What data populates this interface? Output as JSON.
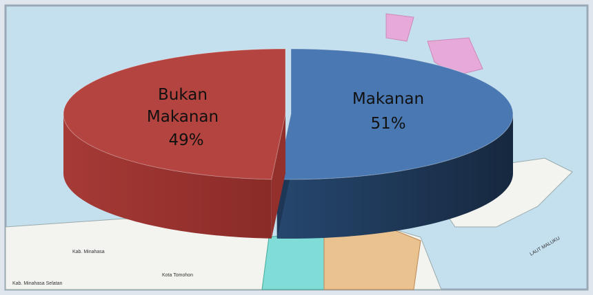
{
  "chart_data": {
    "type": "pie3d",
    "categories": [
      "Makanan",
      "Bukan Makanan"
    ],
    "values": [
      51,
      49
    ],
    "value_labels": [
      "51%",
      "49%"
    ],
    "colors": [
      "#4a78b2",
      "#b4443f"
    ],
    "annotations": [
      "Kab. Minahasa",
      "Kota Tomohon",
      "Kab. Minahasa Selatan",
      "LAUT MALUKU"
    ]
  }
}
